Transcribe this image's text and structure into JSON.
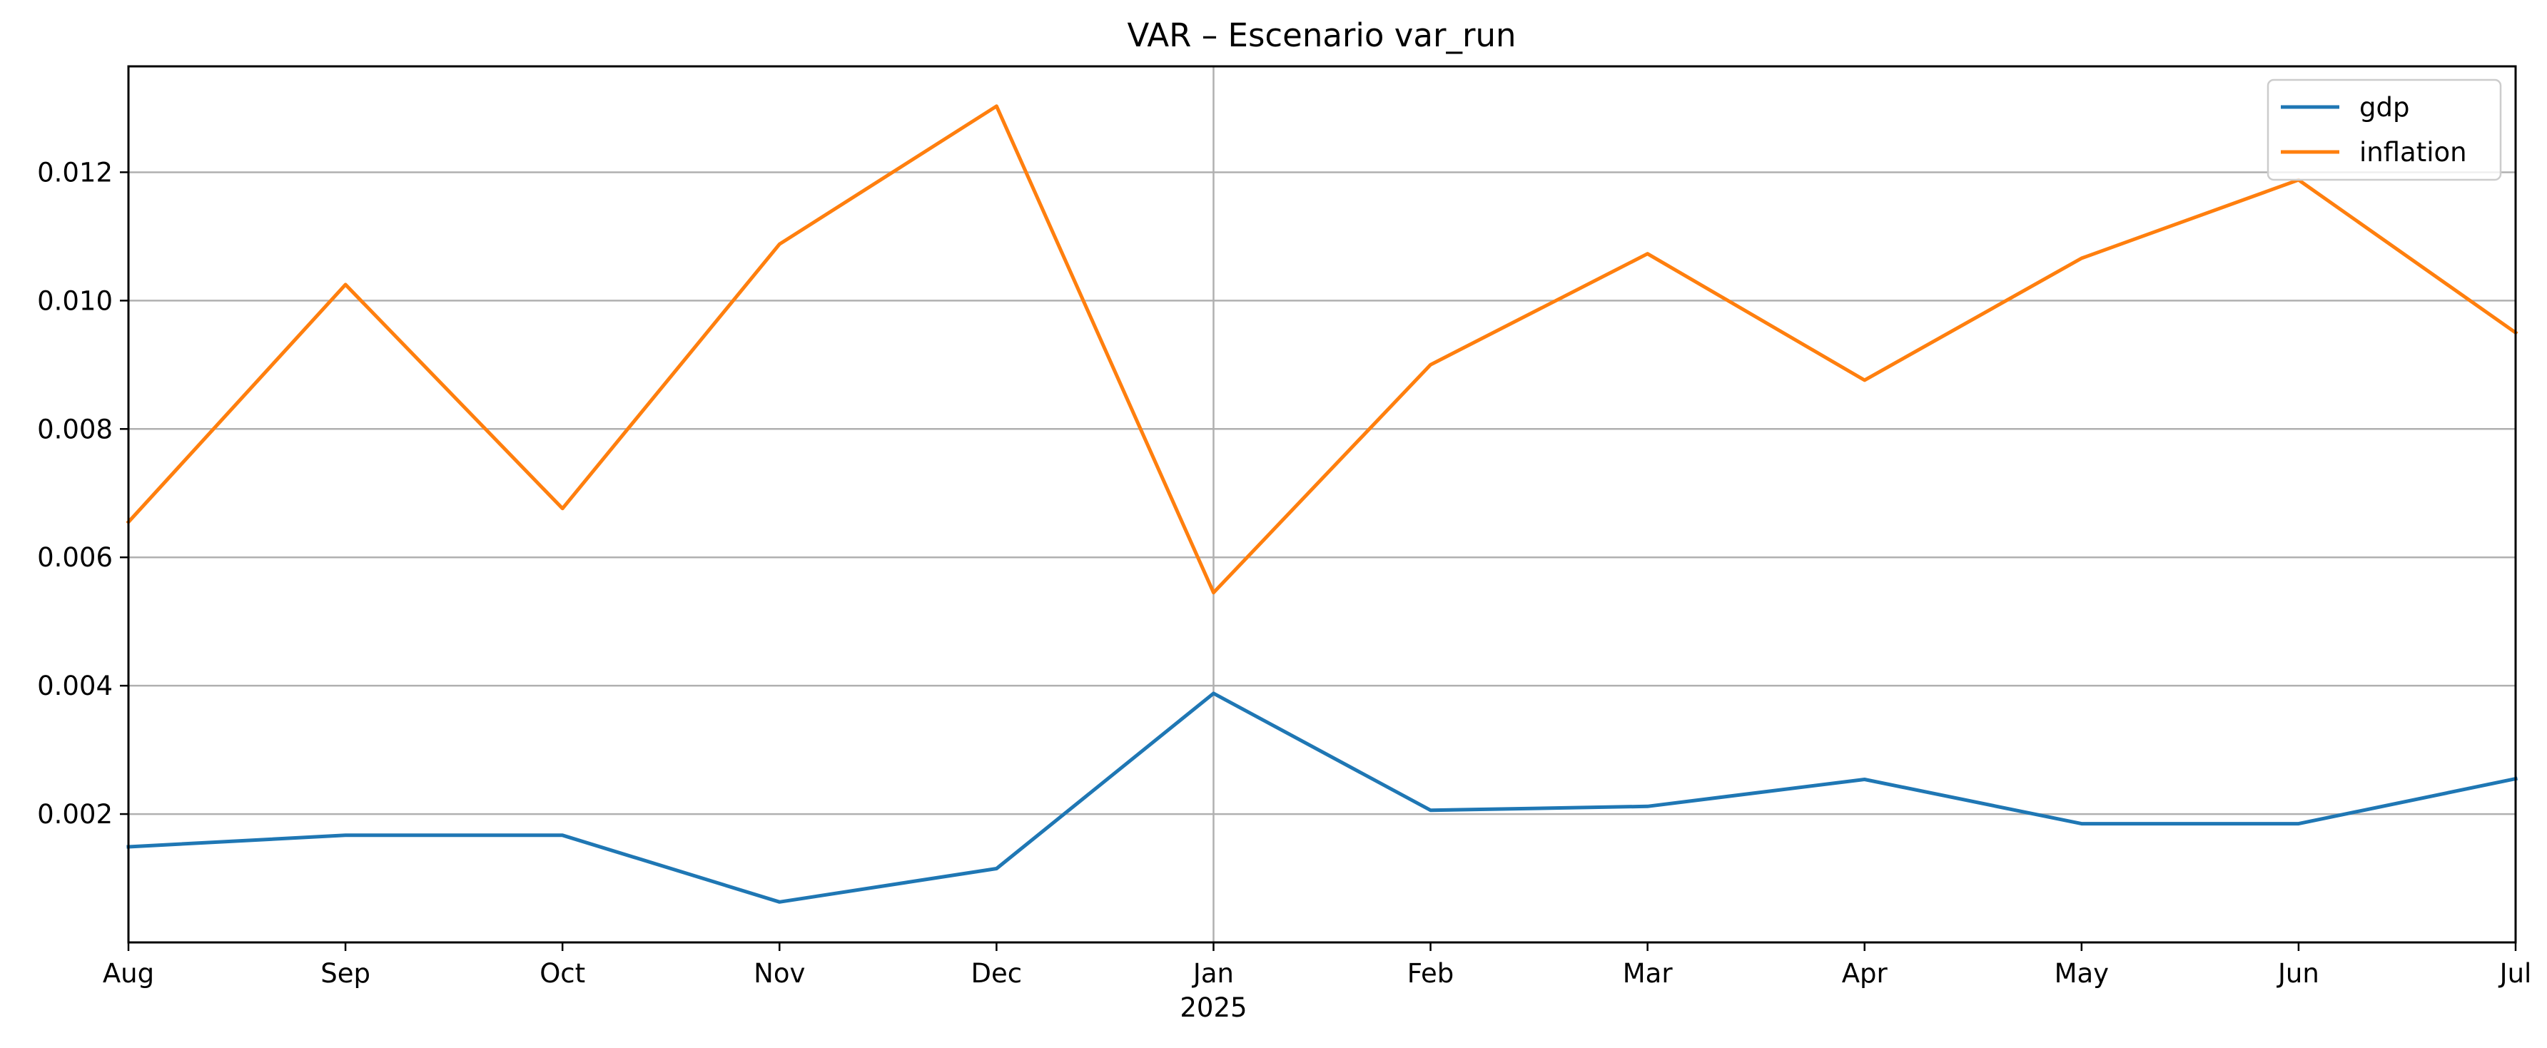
{
  "chart_data": {
    "type": "line",
    "title": "VAR – Escenario var_run",
    "xlabel": "",
    "ylabel": "",
    "x": [
      "Aug",
      "Sep",
      "Oct",
      "Nov",
      "Dec",
      "Jan",
      "Feb",
      "Mar",
      "Apr",
      "May",
      "Jun",
      "Jul"
    ],
    "x_year_label": "2025",
    "ylim": [
      0.0,
      0.01365
    ],
    "yticks": [
      "0.002",
      "0.004",
      "0.006",
      "0.008",
      "0.010",
      "0.012"
    ],
    "grid": true,
    "legend_position": "top-right",
    "series": [
      {
        "name": "gdp",
        "color": "#1f77b4",
        "values": [
          0.00149,
          0.00167,
          0.00167,
          0.00063,
          0.00115,
          0.00388,
          0.00206,
          0.00212,
          0.00254,
          0.00185,
          0.00185,
          0.00255
        ]
      },
      {
        "name": "inflation",
        "color": "#ff7f0e",
        "values": [
          0.00655,
          0.01025,
          0.00676,
          0.01088,
          0.01303,
          0.00545,
          0.009,
          0.01073,
          0.00876,
          0.01066,
          0.01188,
          0.0095
        ]
      }
    ]
  }
}
